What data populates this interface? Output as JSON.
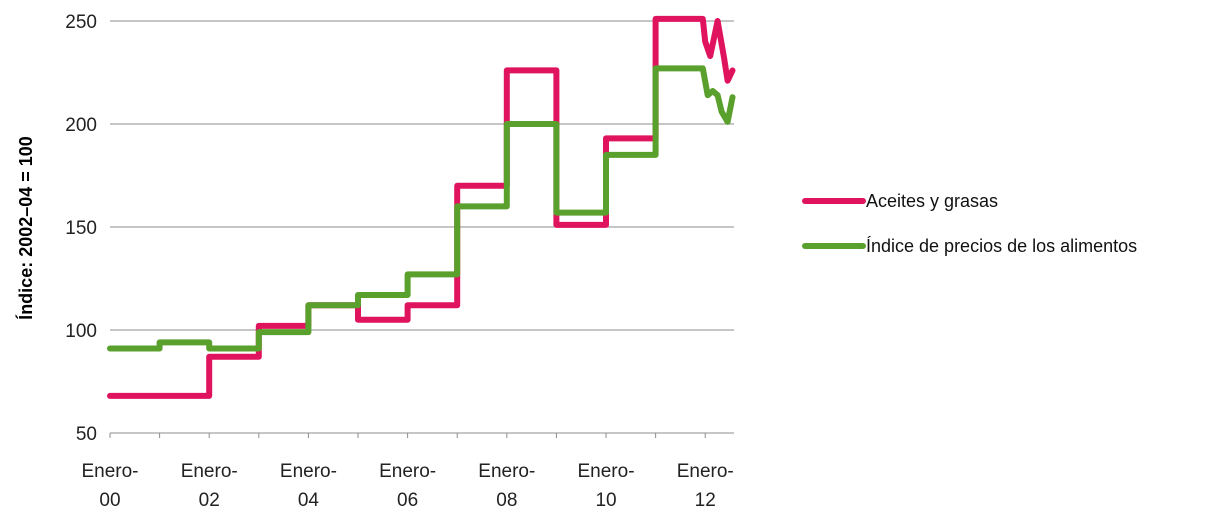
{
  "chart_data": {
    "type": "line",
    "ylabel": "Índice: 2002–04 = 100",
    "ylim": [
      50,
      250
    ],
    "yticks": [
      50,
      100,
      150,
      200,
      250
    ],
    "grid": true,
    "legend_position": "right",
    "x_tick_labels": [
      {
        "x": 2000,
        "line1": "Enero-",
        "line2": "00"
      },
      {
        "x": 2002,
        "line1": "Enero-",
        "line2": "02"
      },
      {
        "x": 2004,
        "line1": "Enero-",
        "line2": "04"
      },
      {
        "x": 2006,
        "line1": "Enero-",
        "line2": "06"
      },
      {
        "x": 2008,
        "line1": "Enero-",
        "line2": "08"
      },
      {
        "x": 2010,
        "line1": "Enero-",
        "line2": "10"
      },
      {
        "x": 2012,
        "line1": "Enero-",
        "line2": "12"
      }
    ],
    "xlim": [
      2000,
      2012.58
    ],
    "series": [
      {
        "name": "Aceites y grasas",
        "color": "#e0135f",
        "points": [
          [
            2000,
            68
          ],
          [
            2002,
            68
          ],
          [
            2002,
            87
          ],
          [
            2003,
            87
          ],
          [
            2003,
            102
          ],
          [
            2004,
            102
          ],
          [
            2004,
            112
          ],
          [
            2005,
            112
          ],
          [
            2005,
            105
          ],
          [
            2006,
            105
          ],
          [
            2006,
            112
          ],
          [
            2007,
            112
          ],
          [
            2007,
            170
          ],
          [
            2008,
            170
          ],
          [
            2008,
            226
          ],
          [
            2009,
            226
          ],
          [
            2009,
            151
          ],
          [
            2010,
            151
          ],
          [
            2010,
            193
          ],
          [
            2011,
            193
          ],
          [
            2011,
            251
          ],
          [
            2011.95,
            251
          ],
          [
            2012.0,
            240
          ],
          [
            2012.1,
            233
          ],
          [
            2012.25,
            250
          ],
          [
            2012.38,
            232
          ],
          [
            2012.45,
            221
          ],
          [
            2012.55,
            226
          ]
        ]
      },
      {
        "name": "Índice de precios de los alimentos",
        "color": "#5aa02c",
        "points": [
          [
            2000,
            91
          ],
          [
            2001,
            91
          ],
          [
            2001,
            94
          ],
          [
            2002,
            94
          ],
          [
            2002,
            91
          ],
          [
            2003,
            91
          ],
          [
            2003,
            99
          ],
          [
            2004,
            99
          ],
          [
            2004,
            112
          ],
          [
            2005,
            112
          ],
          [
            2005,
            117
          ],
          [
            2006,
            117
          ],
          [
            2006,
            127
          ],
          [
            2007,
            127
          ],
          [
            2007,
            160
          ],
          [
            2008,
            160
          ],
          [
            2008,
            200
          ],
          [
            2009,
            200
          ],
          [
            2009,
            157
          ],
          [
            2010,
            157
          ],
          [
            2010,
            185
          ],
          [
            2011,
            185
          ],
          [
            2011,
            227
          ],
          [
            2011.95,
            227
          ],
          [
            2012.05,
            214
          ],
          [
            2012.15,
            216
          ],
          [
            2012.25,
            214
          ],
          [
            2012.33,
            206
          ],
          [
            2012.45,
            201
          ],
          [
            2012.55,
            213
          ]
        ]
      }
    ]
  }
}
